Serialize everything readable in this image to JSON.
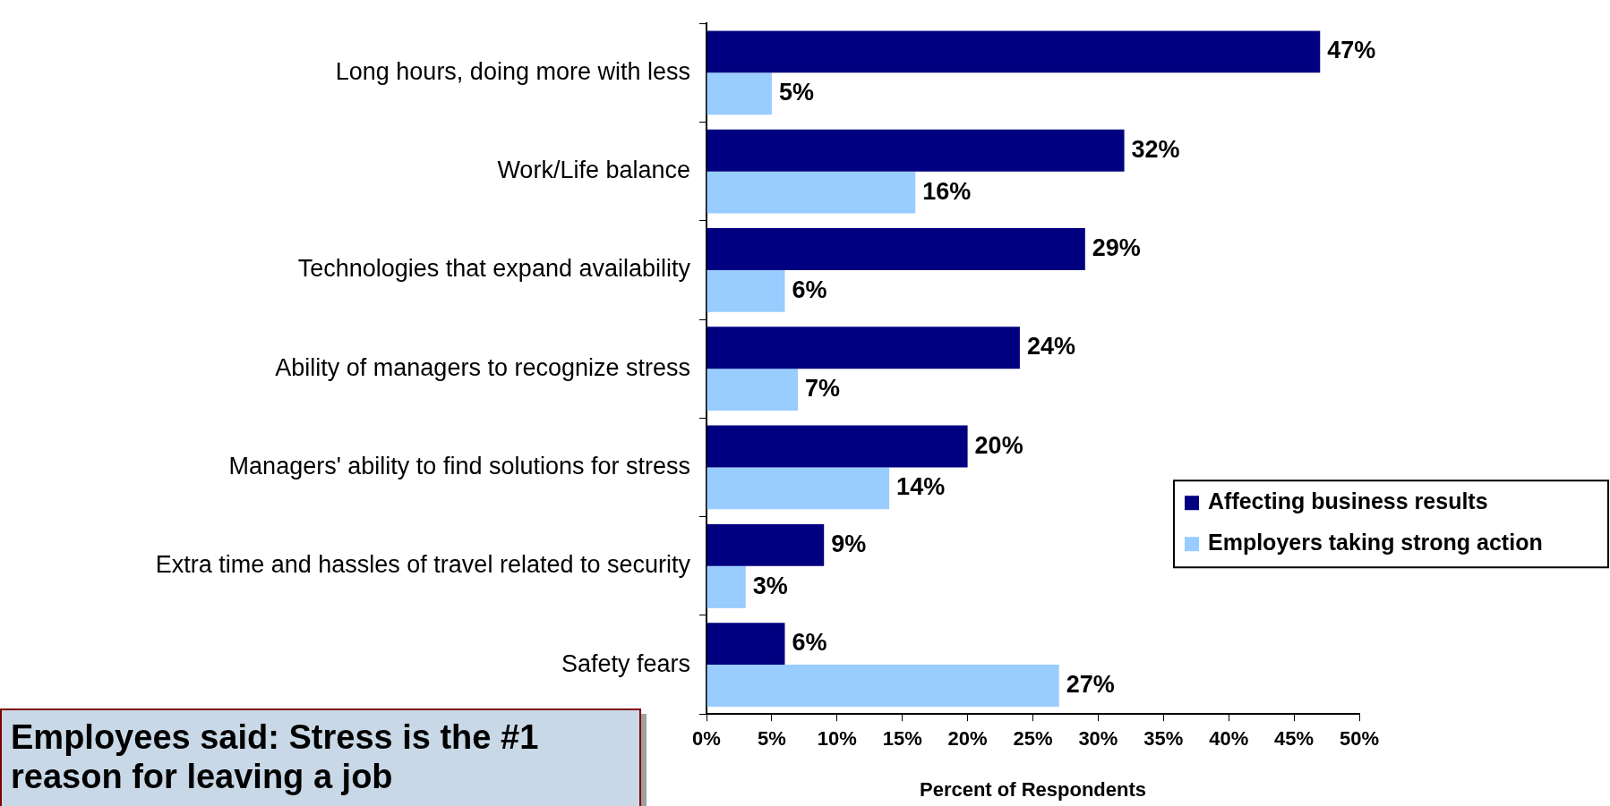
{
  "chart_data": {
    "type": "bar",
    "orientation": "horizontal",
    "xlabel": "Percent of Respondents",
    "categories": [
      "Long hours, doing more with less",
      "Work/Life balance",
      "Technologies that expand availability",
      "Ability of managers to recognize stress",
      "Managers' ability to find solutions for stress",
      "Extra time and hassles of travel related to security",
      "Safety fears"
    ],
    "series": [
      {
        "name": "Affecting business results",
        "color": "#000080",
        "values": [
          47,
          32,
          29,
          24,
          20,
          9,
          6
        ]
      },
      {
        "name": "Employers taking strong action",
        "color": "#99ccff",
        "values": [
          5,
          16,
          6,
          7,
          14,
          3,
          27
        ]
      }
    ],
    "xlim": [
      0,
      50
    ],
    "xticks": [
      {
        "value": 0,
        "label": "0%"
      },
      {
        "value": 5,
        "label": "5%"
      },
      {
        "value": 10,
        "label": "10%"
      },
      {
        "value": 15,
        "label": "15%"
      },
      {
        "value": 20,
        "label": "20%"
      },
      {
        "value": 25,
        "label": "25%"
      },
      {
        "value": 30,
        "label": "30%"
      },
      {
        "value": 35,
        "label": "35%"
      },
      {
        "value": 40,
        "label": "40%"
      },
      {
        "value": 45,
        "label": "45%"
      },
      {
        "value": 50,
        "label": "50%"
      }
    ],
    "value_labels": [
      [
        "47%",
        "32%",
        "29%",
        "24%",
        "20%",
        "9%",
        "6%"
      ],
      [
        "5%",
        "16%",
        "6%",
        "7%",
        "14%",
        "3%",
        "27%"
      ]
    ],
    "grid": false,
    "legend": "right",
    "annotations": [
      "Employees said: Stress is the #1 reason for leaving a job"
    ]
  }
}
